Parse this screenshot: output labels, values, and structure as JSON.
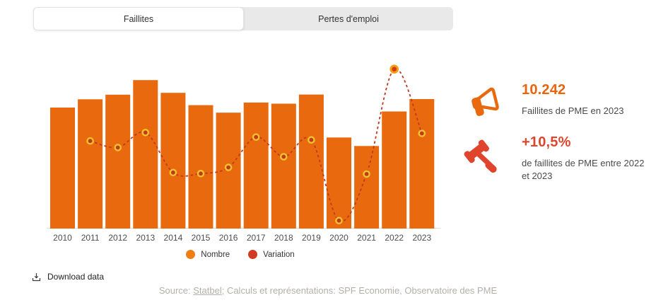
{
  "tabs": [
    {
      "label": "Faillites",
      "active": true
    },
    {
      "label": "Pertes d'emploi",
      "active": false
    }
  ],
  "chart_data": {
    "type": "bar+line",
    "categories": [
      "2010",
      "2011",
      "2012",
      "2013",
      "2014",
      "2015",
      "2016",
      "2017",
      "2018",
      "2019",
      "2020",
      "2021",
      "2022",
      "2023"
    ],
    "series": [
      {
        "name": "Nombre",
        "type": "bar",
        "color": "#e8690e",
        "values": [
          9570,
          10224,
          10587,
          11740,
          10736,
          9762,
          9170,
          9968,
          9878,
          10598,
          7203,
          6533,
          9265,
          10242
        ]
      },
      {
        "name": "Variation",
        "type": "line",
        "unit": "%",
        "color": "#c0391f",
        "marker_ring_color": "#f2c12e",
        "highlighted_point": "2022",
        "values": [
          null,
          6.8,
          3.6,
          10.9,
          -8.6,
          -9.1,
          -6.1,
          8.7,
          -0.9,
          7.3,
          -32.0,
          -9.3,
          41.8,
          10.5
        ]
      }
    ],
    "legend_position": "bottom",
    "grid": false,
    "xlabel": "",
    "ylabel": ""
  },
  "legend": [
    {
      "label": "Nombre",
      "color": "#ee7d12"
    },
    {
      "label": "Variation",
      "color": "#d23b23"
    }
  ],
  "stats": [
    {
      "icon": "megaphone",
      "value": "10.242",
      "label": "Faillites de PME en 2023",
      "value_color": "#e8650d",
      "icon_color": "#e8690e"
    },
    {
      "icon": "gavel",
      "value": "+10,5%",
      "label": "de faillites de PME entre 2022 et 2023",
      "value_color": "#df442c",
      "icon_color": "#df442c"
    }
  ],
  "footer": {
    "download_label": "Download data",
    "source_prefix": "Source: ",
    "source_link": "Statbel",
    "source_suffix": "; Calculs et représentations: SPF Economie, Observatoire des PME"
  }
}
